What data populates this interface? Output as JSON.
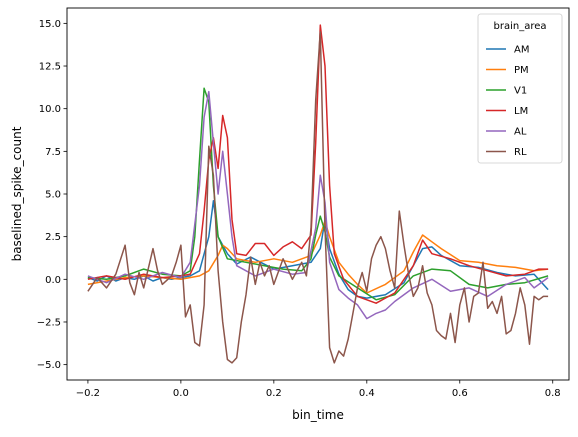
{
  "chart_data": {
    "type": "line",
    "xlabel": "bin_time",
    "ylabel": "baselined_spike_count",
    "xlim": [
      -0.245,
      0.835
    ],
    "ylim": [
      -5.9,
      15.9
    ],
    "x_ticks": [
      -0.2,
      0.0,
      0.2,
      0.4,
      0.6,
      0.8
    ],
    "x_tick_labels": [
      "−0.2",
      "0.0",
      "0.2",
      "0.4",
      "0.6",
      "0.8"
    ],
    "y_ticks": [
      -5.0,
      -2.5,
      0.0,
      2.5,
      5.0,
      7.5,
      10.0,
      12.5,
      15.0
    ],
    "y_tick_labels": [
      "−5.0",
      "−2.5",
      "0.0",
      "2.5",
      "5.0",
      "7.5",
      "10.0",
      "12.5",
      "15.0"
    ],
    "grid": false,
    "legend": {
      "title": "brain_area",
      "placement": "upper-right"
    },
    "series": [
      {
        "name": "AM",
        "color": "#1f77b4",
        "points": [
          [
            -0.2,
            0.1
          ],
          [
            -0.18,
            -0.1
          ],
          [
            -0.16,
            0.2
          ],
          [
            -0.14,
            -0.1
          ],
          [
            -0.12,
            0.1
          ],
          [
            -0.1,
            0.0
          ],
          [
            -0.08,
            0.2
          ],
          [
            -0.06,
            -0.1
          ],
          [
            -0.04,
            0.1
          ],
          [
            -0.02,
            0.0
          ],
          [
            0.0,
            0.1
          ],
          [
            0.02,
            0.2
          ],
          [
            0.04,
            0.5
          ],
          [
            0.06,
            2.5
          ],
          [
            0.07,
            4.6
          ],
          [
            0.08,
            2.5
          ],
          [
            0.1,
            1.5
          ],
          [
            0.12,
            0.9
          ],
          [
            0.15,
            1.3
          ],
          [
            0.2,
            0.6
          ],
          [
            0.24,
            0.8
          ],
          [
            0.28,
            1.0
          ],
          [
            0.3,
            1.8
          ],
          [
            0.31,
            3.5
          ],
          [
            0.32,
            1.8
          ],
          [
            0.34,
            0.3
          ],
          [
            0.36,
            -0.6
          ],
          [
            0.38,
            -1.0
          ],
          [
            0.4,
            -1.1
          ],
          [
            0.44,
            -0.9
          ],
          [
            0.48,
            -0.2
          ],
          [
            0.5,
            0.8
          ],
          [
            0.52,
            1.8
          ],
          [
            0.54,
            1.9
          ],
          [
            0.56,
            1.4
          ],
          [
            0.6,
            0.8
          ],
          [
            0.64,
            0.7
          ],
          [
            0.68,
            0.4
          ],
          [
            0.72,
            0.2
          ],
          [
            0.76,
            0.3
          ],
          [
            0.79,
            -0.6
          ]
        ]
      },
      {
        "name": "PM",
        "color": "#ff7f0e",
        "points": [
          [
            -0.2,
            -0.3
          ],
          [
            -0.16,
            -0.1
          ],
          [
            -0.12,
            0.1
          ],
          [
            -0.08,
            0.2
          ],
          [
            -0.04,
            0.1
          ],
          [
            0.0,
            0.0
          ],
          [
            0.04,
            0.2
          ],
          [
            0.06,
            0.5
          ],
          [
            0.08,
            1.4
          ],
          [
            0.09,
            2.0
          ],
          [
            0.1,
            1.8
          ],
          [
            0.12,
            1.2
          ],
          [
            0.16,
            1.0
          ],
          [
            0.2,
            1.2
          ],
          [
            0.24,
            1.0
          ],
          [
            0.28,
            1.4
          ],
          [
            0.3,
            2.6
          ],
          [
            0.31,
            3.4
          ],
          [
            0.32,
            2.5
          ],
          [
            0.34,
            1.0
          ],
          [
            0.36,
            0.3
          ],
          [
            0.38,
            -0.3
          ],
          [
            0.4,
            -0.8
          ],
          [
            0.44,
            -0.3
          ],
          [
            0.48,
            0.5
          ],
          [
            0.5,
            1.6
          ],
          [
            0.52,
            2.6
          ],
          [
            0.54,
            2.2
          ],
          [
            0.56,
            1.8
          ],
          [
            0.6,
            1.1
          ],
          [
            0.64,
            1.0
          ],
          [
            0.68,
            0.8
          ],
          [
            0.72,
            0.7
          ],
          [
            0.76,
            0.5
          ],
          [
            0.79,
            0.6
          ]
        ]
      },
      {
        "name": "V1",
        "color": "#2ca02c",
        "points": [
          [
            -0.2,
            0.1
          ],
          [
            -0.16,
            0.0
          ],
          [
            -0.12,
            0.2
          ],
          [
            -0.08,
            0.6
          ],
          [
            -0.04,
            0.3
          ],
          [
            0.0,
            0.2
          ],
          [
            0.02,
            0.5
          ],
          [
            0.03,
            2.5
          ],
          [
            0.04,
            7.0
          ],
          [
            0.05,
            11.2
          ],
          [
            0.06,
            10.4
          ],
          [
            0.07,
            5.5
          ],
          [
            0.08,
            2.5
          ],
          [
            0.1,
            1.2
          ],
          [
            0.14,
            1.0
          ],
          [
            0.18,
            0.8
          ],
          [
            0.22,
            0.6
          ],
          [
            0.26,
            0.5
          ],
          [
            0.28,
            1.2
          ],
          [
            0.29,
            2.6
          ],
          [
            0.3,
            3.7
          ],
          [
            0.31,
            2.8
          ],
          [
            0.32,
            1.3
          ],
          [
            0.34,
            0.2
          ],
          [
            0.38,
            -0.5
          ],
          [
            0.42,
            -1.2
          ],
          [
            0.46,
            -0.9
          ],
          [
            0.5,
            0.2
          ],
          [
            0.54,
            0.6
          ],
          [
            0.58,
            0.5
          ],
          [
            0.62,
            -0.3
          ],
          [
            0.66,
            -0.5
          ],
          [
            0.7,
            -0.3
          ],
          [
            0.74,
            -0.2
          ],
          [
            0.79,
            0.2
          ]
        ]
      },
      {
        "name": "LM",
        "color": "#d62728",
        "points": [
          [
            -0.2,
            0.0
          ],
          [
            -0.16,
            0.2
          ],
          [
            -0.12,
            0.0
          ],
          [
            -0.08,
            0.3
          ],
          [
            -0.04,
            0.1
          ],
          [
            0.0,
            0.2
          ],
          [
            0.02,
            0.3
          ],
          [
            0.04,
            1.5
          ],
          [
            0.05,
            4.0
          ],
          [
            0.06,
            7.0
          ],
          [
            0.07,
            8.3
          ],
          [
            0.08,
            6.5
          ],
          [
            0.09,
            9.6
          ],
          [
            0.1,
            8.3
          ],
          [
            0.11,
            3.5
          ],
          [
            0.12,
            1.5
          ],
          [
            0.14,
            1.4
          ],
          [
            0.16,
            2.1
          ],
          [
            0.18,
            2.1
          ],
          [
            0.2,
            1.4
          ],
          [
            0.22,
            1.9
          ],
          [
            0.24,
            2.2
          ],
          [
            0.26,
            1.8
          ],
          [
            0.28,
            2.6
          ],
          [
            0.29,
            8.0
          ],
          [
            0.3,
            14.9
          ],
          [
            0.31,
            12.5
          ],
          [
            0.32,
            5.5
          ],
          [
            0.33,
            1.5
          ],
          [
            0.35,
            0.0
          ],
          [
            0.38,
            -1.0
          ],
          [
            0.42,
            -1.4
          ],
          [
            0.46,
            -0.8
          ],
          [
            0.5,
            0.8
          ],
          [
            0.52,
            2.3
          ],
          [
            0.54,
            1.5
          ],
          [
            0.58,
            1.2
          ],
          [
            0.62,
            0.8
          ],
          [
            0.66,
            0.5
          ],
          [
            0.7,
            0.2
          ],
          [
            0.74,
            0.3
          ],
          [
            0.77,
            0.6
          ],
          [
            0.79,
            0.6
          ]
        ]
      },
      {
        "name": "AL",
        "color": "#9467bd",
        "points": [
          [
            -0.2,
            0.2
          ],
          [
            -0.16,
            -0.2
          ],
          [
            -0.12,
            0.3
          ],
          [
            -0.08,
            0.0
          ],
          [
            -0.04,
            0.4
          ],
          [
            0.0,
            0.1
          ],
          [
            0.02,
            1.0
          ],
          [
            0.04,
            5.5
          ],
          [
            0.05,
            9.5
          ],
          [
            0.06,
            11.0
          ],
          [
            0.07,
            8.0
          ],
          [
            0.08,
            5.0
          ],
          [
            0.09,
            7.5
          ],
          [
            0.1,
            5.0
          ],
          [
            0.11,
            2.5
          ],
          [
            0.12,
            0.8
          ],
          [
            0.16,
            0.2
          ],
          [
            0.2,
            0.6
          ],
          [
            0.24,
            0.3
          ],
          [
            0.27,
            0.4
          ],
          [
            0.29,
            3.0
          ],
          [
            0.3,
            6.1
          ],
          [
            0.31,
            4.5
          ],
          [
            0.32,
            1.0
          ],
          [
            0.34,
            -0.6
          ],
          [
            0.36,
            -1.1
          ],
          [
            0.38,
            -1.5
          ],
          [
            0.4,
            -2.3
          ],
          [
            0.42,
            -2.0
          ],
          [
            0.44,
            -1.8
          ],
          [
            0.46,
            -1.3
          ],
          [
            0.5,
            -0.5
          ],
          [
            0.54,
            0.0
          ],
          [
            0.58,
            -0.7
          ],
          [
            0.62,
            -0.5
          ],
          [
            0.66,
            -1.0
          ],
          [
            0.7,
            -0.3
          ],
          [
            0.74,
            0.1
          ],
          [
            0.76,
            -0.5
          ],
          [
            0.79,
            0.1
          ]
        ]
      },
      {
        "name": "RL",
        "color": "#8c564b",
        "points": [
          [
            -0.2,
            -0.7
          ],
          [
            -0.18,
            0.1
          ],
          [
            -0.16,
            -0.5
          ],
          [
            -0.14,
            0.3
          ],
          [
            -0.12,
            2.0
          ],
          [
            -0.11,
            -0.2
          ],
          [
            -0.1,
            -0.9
          ],
          [
            -0.09,
            0.4
          ],
          [
            -0.08,
            -0.5
          ],
          [
            -0.06,
            1.8
          ],
          [
            -0.05,
            0.5
          ],
          [
            -0.04,
            -0.3
          ],
          [
            -0.02,
            0.2
          ],
          [
            -0.01,
            1.0
          ],
          [
            0.0,
            2.0
          ],
          [
            0.01,
            -2.2
          ],
          [
            0.02,
            -1.5
          ],
          [
            0.03,
            -3.7
          ],
          [
            0.04,
            -3.9
          ],
          [
            0.05,
            -1.5
          ],
          [
            0.06,
            7.8
          ],
          [
            0.07,
            6.1
          ],
          [
            0.08,
            0.5
          ],
          [
            0.09,
            -2.5
          ],
          [
            0.1,
            -4.7
          ],
          [
            0.11,
            -4.9
          ],
          [
            0.12,
            -4.6
          ],
          [
            0.13,
            -2.5
          ],
          [
            0.14,
            -0.9
          ],
          [
            0.15,
            1.3
          ],
          [
            0.16,
            -0.3
          ],
          [
            0.17,
            1.0
          ],
          [
            0.18,
            0.2
          ],
          [
            0.19,
            0.8
          ],
          [
            0.2,
            -0.3
          ],
          [
            0.22,
            1.2
          ],
          [
            0.24,
            0.0
          ],
          [
            0.26,
            1.0
          ],
          [
            0.27,
            0.2
          ],
          [
            0.28,
            3.0
          ],
          [
            0.29,
            10.5
          ],
          [
            0.3,
            14.5
          ],
          [
            0.31,
            3.0
          ],
          [
            0.32,
            -4.0
          ],
          [
            0.33,
            -4.9
          ],
          [
            0.34,
            -4.2
          ],
          [
            0.35,
            -4.5
          ],
          [
            0.36,
            -3.5
          ],
          [
            0.37,
            -2.0
          ],
          [
            0.38,
            -0.5
          ],
          [
            0.39,
            0.4
          ],
          [
            0.4,
            -0.7
          ],
          [
            0.41,
            1.2
          ],
          [
            0.42,
            2.0
          ],
          [
            0.43,
            2.5
          ],
          [
            0.44,
            1.8
          ],
          [
            0.45,
            0.5
          ],
          [
            0.46,
            -0.5
          ],
          [
            0.47,
            4.0
          ],
          [
            0.48,
            2.0
          ],
          [
            0.49,
            0.3
          ],
          [
            0.5,
            -1.0
          ],
          [
            0.51,
            -0.5
          ],
          [
            0.52,
            0.8
          ],
          [
            0.53,
            -0.8
          ],
          [
            0.54,
            -1.5
          ],
          [
            0.55,
            -3.0
          ],
          [
            0.56,
            -3.3
          ],
          [
            0.57,
            -3.5
          ],
          [
            0.58,
            -2.0
          ],
          [
            0.59,
            -3.7
          ],
          [
            0.6,
            -1.5
          ],
          [
            0.61,
            -0.5
          ],
          [
            0.62,
            -2.5
          ],
          [
            0.63,
            -1.0
          ],
          [
            0.64,
            -0.8
          ],
          [
            0.65,
            1.0
          ],
          [
            0.66,
            -1.7
          ],
          [
            0.67,
            -1.3
          ],
          [
            0.68,
            -2.0
          ],
          [
            0.69,
            -1.0
          ],
          [
            0.7,
            -3.2
          ],
          [
            0.71,
            -3.0
          ],
          [
            0.72,
            -2.0
          ],
          [
            0.73,
            -0.5
          ],
          [
            0.74,
            -1.5
          ],
          [
            0.75,
            -3.8
          ],
          [
            0.76,
            -1.0
          ],
          [
            0.77,
            -1.2
          ],
          [
            0.78,
            -1.0
          ],
          [
            0.79,
            -1.0
          ]
        ]
      }
    ]
  }
}
